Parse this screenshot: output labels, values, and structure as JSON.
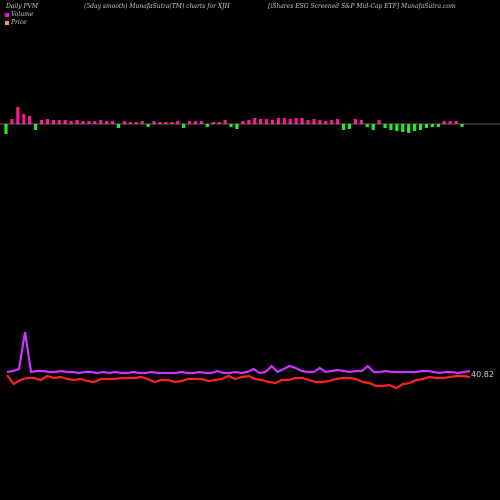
{
  "header": {
    "left": "Daily PVM",
    "middle": "(5day smooth) MunafaSutra(TM) charts for XJH",
    "right": "[iShares ESG Screened S&P Mid-Cap ETF] MunafaSutra.com"
  },
  "legend": [
    {
      "label": "Volume",
      "color": "#ff00ff"
    },
    {
      "label": "Price",
      "color": "#ff9966"
    }
  ],
  "colors": {
    "up_volume": "#ff1493",
    "down_volume": "#22ee22",
    "price_line": "#ff2222",
    "volume_line": "#cc33ff",
    "baseline": "#bbbbbb"
  },
  "chart_data": {
    "type": "line",
    "last_price_label": "40.82",
    "volume_bars": {
      "values": [
        -10,
        5,
        17,
        10,
        8,
        -6,
        4,
        5,
        4,
        4,
        4,
        3,
        4,
        3,
        3,
        3,
        4,
        3,
        3,
        -4,
        3,
        2,
        2,
        3,
        -3,
        3,
        2,
        2,
        2,
        3,
        -4,
        3,
        3,
        3,
        -3,
        2,
        2,
        4,
        -3,
        -5,
        3,
        4,
        6,
        5,
        5,
        4,
        6,
        6,
        5,
        6,
        6,
        4,
        5,
        4,
        3,
        4,
        5,
        -6,
        -5,
        5,
        4,
        -3,
        -6,
        4,
        -4,
        -6,
        -7,
        -8,
        -9,
        -7,
        -6,
        -4,
        -3,
        -3,
        3,
        3,
        3,
        -3
      ]
    },
    "volume_line": [
      8,
      9,
      11,
      48,
      8,
      9,
      9,
      8,
      8,
      9,
      8,
      8,
      7,
      8,
      8,
      7,
      8,
      7,
      8,
      7,
      7,
      8,
      7,
      7,
      8,
      7,
      7,
      7,
      7,
      8,
      7,
      7,
      8,
      7,
      7,
      9,
      7,
      7,
      8,
      7,
      8,
      11,
      7,
      8,
      14,
      8,
      11,
      14,
      12,
      9,
      8,
      8,
      12,
      8,
      9,
      10,
      9,
      8,
      9,
      9,
      14,
      8,
      8,
      9,
      8,
      8,
      8,
      8,
      8,
      9,
      9,
      8,
      7,
      8,
      8,
      7,
      8,
      9
    ],
    "price_line": [
      7,
      -2,
      2,
      4,
      4,
      2,
      6,
      4,
      5,
      3,
      2,
      3,
      1,
      0,
      3,
      3,
      3,
      4,
      4,
      4,
      5,
      3,
      0,
      2,
      2,
      0,
      1,
      3,
      3,
      3,
      1,
      2,
      3,
      6,
      3,
      5,
      6,
      3,
      2,
      0,
      -1,
      2,
      2,
      4,
      4,
      2,
      0,
      0,
      1,
      3,
      4,
      4,
      3,
      0,
      -1,
      -4,
      -4,
      -3,
      -6,
      -2,
      -1,
      2,
      3,
      5,
      4,
      4,
      5,
      6,
      6,
      5
    ]
  }
}
